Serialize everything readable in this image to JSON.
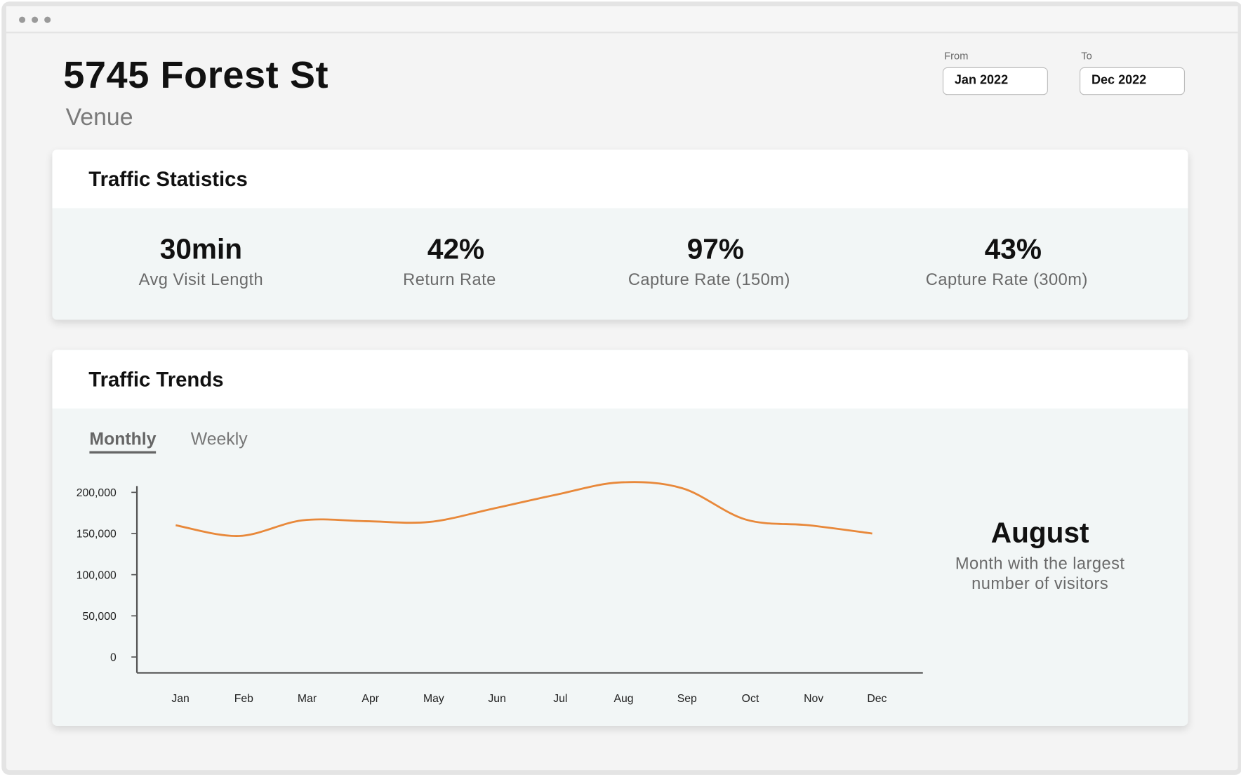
{
  "header": {
    "title": "5745 Forest St",
    "subtitle": "Venue"
  },
  "date_range": {
    "from_label": "From",
    "from_value": "Jan 2022",
    "to_label": "To",
    "to_value": "Dec 2022"
  },
  "traffic_statistics": {
    "title": "Traffic Statistics",
    "stats": [
      {
        "value": "30min",
        "label": "Avg Visit Length"
      },
      {
        "value": "42%",
        "label": "Return Rate"
      },
      {
        "value": "97%",
        "label": "Capture Rate (150m)"
      },
      {
        "value": "43%",
        "label": "Capture Rate (300m)"
      }
    ]
  },
  "traffic_trends": {
    "title": "Traffic Trends",
    "tabs": [
      {
        "label": "Monthly",
        "active": true
      },
      {
        "label": "Weekly",
        "active": false
      }
    ],
    "highlight": {
      "value": "August",
      "label_line1": "Month with the largest",
      "label_line2": "number of visitors"
    }
  },
  "colors": {
    "line": "#e8883a",
    "axis": "#555555"
  },
  "chart_data": {
    "type": "line",
    "categories": [
      "Jan",
      "Feb",
      "Mar",
      "Apr",
      "May",
      "Jun",
      "Jul",
      "Aug",
      "Sep",
      "Oct",
      "Nov",
      "Dec"
    ],
    "values": [
      160000,
      147000,
      166000,
      165000,
      164000,
      180000,
      197000,
      212000,
      205000,
      167000,
      160000,
      150000
    ],
    "yticks": [
      0,
      50000,
      100000,
      150000,
      200000
    ],
    "ytick_labels": [
      "0",
      "50,000",
      "100,000",
      "150,000",
      "200,000"
    ],
    "ylim": [
      0,
      200000
    ],
    "grid": false,
    "title": "",
    "xlabel": "",
    "ylabel": ""
  }
}
